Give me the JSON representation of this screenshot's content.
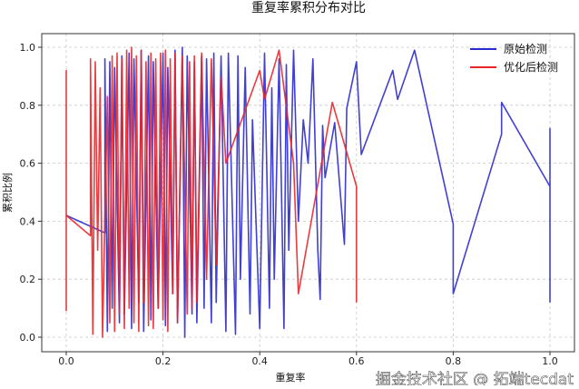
{
  "chart_data": {
    "type": "line",
    "title": "重复率累积分布对比",
    "xlabel": "重复率",
    "ylabel": "累积比例",
    "xlim": [
      -0.05,
      1.05
    ],
    "ylim": [
      -0.05,
      1.05
    ],
    "xticks": [
      "0.0",
      "0.2",
      "0.4",
      "0.6",
      "0.8",
      "1.0"
    ],
    "yticks": [
      "0.0",
      "0.2",
      "0.4",
      "0.6",
      "0.8",
      "1.0"
    ],
    "grid": true,
    "legend_position": "top-right",
    "series": [
      {
        "name": "原始检测",
        "color": "#2b2bd0",
        "points": [
          [
            0,
            0.42
          ],
          [
            0.08,
            0.36
          ],
          [
            0.08,
            0.96
          ],
          [
            0.085,
            0.02
          ],
          [
            0.09,
            0.95
          ],
          [
            0.095,
            0.1
          ],
          [
            0.1,
            0.93
          ],
          [
            0.11,
            0.05
          ],
          [
            0.115,
            0.97
          ],
          [
            0.12,
            0.08
          ],
          [
            0.13,
            0.98
          ],
          [
            0.135,
            0.03
          ],
          [
            0.14,
            0.96
          ],
          [
            0.15,
            0.12
          ],
          [
            0.155,
            0.99
          ],
          [
            0.16,
            0.02
          ],
          [
            0.17,
            0.97
          ],
          [
            0.175,
            0.06
          ],
          [
            0.18,
            0.95
          ],
          [
            0.19,
            0.1
          ],
          [
            0.2,
            0.98
          ],
          [
            0.205,
            0.04
          ],
          [
            0.21,
            0.93
          ],
          [
            0.22,
            0.15
          ],
          [
            0.225,
            0.99
          ],
          [
            0.23,
            0.05
          ],
          [
            0.24,
            1.0
          ],
          [
            0.245,
            0.0
          ],
          [
            0.25,
            0.97
          ],
          [
            0.26,
            0.08
          ],
          [
            0.265,
            0.95
          ],
          [
            0.27,
            0.05
          ],
          [
            0.28,
            0.97
          ],
          [
            0.285,
            0.1
          ],
          [
            0.29,
            0.96
          ],
          [
            0.3,
            0.05
          ],
          [
            0.305,
            0.98
          ],
          [
            0.31,
            0.12
          ],
          [
            0.32,
            0.97
          ],
          [
            0.33,
            0.02
          ],
          [
            0.335,
            0.98
          ],
          [
            0.35,
            0.01
          ],
          [
            0.355,
            0.97
          ],
          [
            0.36,
            0.2
          ],
          [
            0.37,
            0.93
          ],
          [
            0.38,
            0.08
          ],
          [
            0.385,
            0.75
          ],
          [
            0.4,
            0.03
          ],
          [
            0.41,
            0.98
          ],
          [
            0.42,
            0.1
          ],
          [
            0.425,
            0.86
          ],
          [
            0.43,
            0.2
          ],
          [
            0.44,
            0.96
          ],
          [
            0.45,
            0.03
          ],
          [
            0.455,
            0.94
          ],
          [
            0.46,
            0.3
          ],
          [
            0.47,
            0.99
          ],
          [
            0.48,
            0.4
          ],
          [
            0.49,
            0.75
          ],
          [
            0.5,
            0.6
          ],
          [
            0.51,
            0.96
          ],
          [
            0.52,
            0.3
          ],
          [
            0.525,
            0.13
          ],
          [
            0.53,
            0.73
          ],
          [
            0.535,
            0.55
          ],
          [
            0.555,
            0.74
          ],
          [
            0.575,
            0.32
          ],
          [
            0.58,
            0.79
          ],
          [
            0.6,
            0.95
          ],
          [
            0.61,
            0.63
          ],
          [
            0.675,
            0.92
          ],
          [
            0.685,
            0.82
          ],
          [
            0.72,
            0.99
          ],
          [
            0.8,
            0.39
          ],
          [
            0.8,
            0.15
          ],
          [
            0.9,
            0.7
          ],
          [
            0.9,
            0.81
          ],
          [
            1.0,
            0.52
          ],
          [
            1.0,
            0.72
          ],
          [
            1.0,
            0.12
          ]
        ]
      },
      {
        "name": "优化后检测",
        "color": "#e8262a",
        "points": [
          [
            0,
            0.09
          ],
          [
            0,
            0.92
          ],
          [
            0,
            0.42
          ],
          [
            0.05,
            0.35
          ],
          [
            0.05,
            0.96
          ],
          [
            0.055,
            0.01
          ],
          [
            0.06,
            0.95
          ],
          [
            0.065,
            0.3
          ],
          [
            0.07,
            0.86
          ],
          [
            0.075,
            0.0
          ],
          [
            0.085,
            0.83
          ],
          [
            0.09,
            0.05
          ],
          [
            0.095,
            0.97
          ],
          [
            0.1,
            0.02
          ],
          [
            0.105,
            0.98
          ],
          [
            0.11,
            0.08
          ],
          [
            0.115,
            0.96
          ],
          [
            0.12,
            0.03
          ],
          [
            0.125,
            0.99
          ],
          [
            0.13,
            0.1
          ],
          [
            0.135,
            1.0
          ],
          [
            0.14,
            0.05
          ],
          [
            0.145,
            0.97
          ],
          [
            0.15,
            0.02
          ],
          [
            0.155,
            0.99
          ],
          [
            0.16,
            0.12
          ],
          [
            0.165,
            0.95
          ],
          [
            0.17,
            0.04
          ],
          [
            0.175,
            0.98
          ],
          [
            0.18,
            0.03
          ],
          [
            0.185,
            0.96
          ],
          [
            0.19,
            0.1
          ],
          [
            0.195,
            0.98
          ],
          [
            0.2,
            0.06
          ],
          [
            0.205,
            0.99
          ],
          [
            0.21,
            0.02
          ],
          [
            0.215,
            0.96
          ],
          [
            0.22,
            0.15
          ],
          [
            0.225,
            0.98
          ],
          [
            0.23,
            0.05
          ],
          [
            0.24,
            0.97
          ],
          [
            0.25,
            0.08
          ],
          [
            0.255,
            0.95
          ],
          [
            0.26,
            0.1
          ],
          [
            0.265,
            0.97
          ],
          [
            0.27,
            0.12
          ],
          [
            0.28,
            0.98
          ],
          [
            0.29,
            0.2
          ],
          [
            0.3,
            0.96
          ],
          [
            0.31,
            0.25
          ],
          [
            0.32,
            0.9
          ],
          [
            0.33,
            0.6
          ],
          [
            0.4,
            0.92
          ],
          [
            0.41,
            0.82
          ],
          [
            0.44,
            0.99
          ],
          [
            0.47,
            0.6
          ],
          [
            0.48,
            0.15
          ],
          [
            0.55,
            0.81
          ],
          [
            0.6,
            0.52
          ],
          [
            0.6,
            0.12
          ]
        ]
      }
    ]
  },
  "watermark": "掘金技术社区 @ 拓端tecdat"
}
